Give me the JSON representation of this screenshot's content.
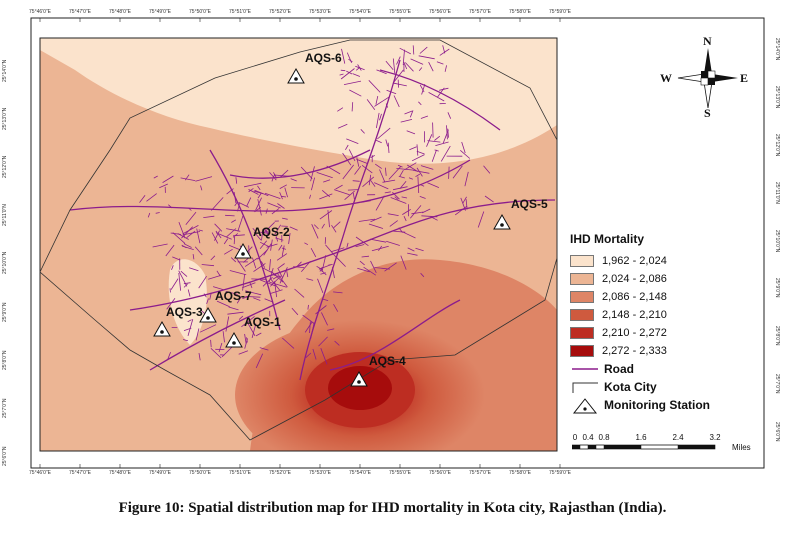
{
  "caption": "Figure 10: Spatial distribution map for IHD mortality in Kota city, Rajasthan (India).",
  "graticule": {
    "longitude_top": [
      "75°46'0\"E",
      "75°47'0\"E",
      "75°48'0\"E",
      "75°49'0\"E",
      "75°50'0\"E",
      "75°51'0\"E",
      "75°52'0\"E",
      "75°53'0\"E",
      "75°54'0\"E",
      "75°55'0\"E",
      "75°56'0\"E",
      "75°57'0\"E",
      "75°58'0\"E",
      "75°59'0\"E"
    ],
    "longitude_bottom": [
      "75°46'0\"E",
      "75°47'0\"E",
      "75°48'0\"E",
      "75°49'0\"E",
      "75°50'0\"E",
      "75°51'0\"E",
      "75°52'0\"E",
      "75°53'0\"E",
      "75°54'0\"E",
      "75°55'0\"E",
      "75°56'0\"E",
      "75°57'0\"E",
      "75°58'0\"E",
      "75°59'0\"E"
    ],
    "latitude_left": [
      "25°14'0\"N",
      "25°13'0\"N",
      "25°12'0\"N",
      "25°11'0\"N",
      "25°10'0\"N",
      "25°9'0\"N",
      "25°8'0\"N",
      "25°7'0\"N",
      "25°6'0\"N"
    ],
    "latitude_right": [
      "25°14'0\"N",
      "25°13'0\"N",
      "25°12'0\"N",
      "25°11'0\"N",
      "25°10'0\"N",
      "25°9'0\"N",
      "25°8'0\"N",
      "25°7'0\"N",
      "25°6'0\"N"
    ]
  },
  "stations": [
    {
      "id": "AQS-6",
      "label": "AQS-6"
    },
    {
      "id": "AQS-5",
      "label": "AQS-5"
    },
    {
      "id": "AQS-2",
      "label": "AQS-2"
    },
    {
      "id": "AQS-7",
      "label": "AQS-7"
    },
    {
      "id": "AQS-3",
      "label": "AQS-3"
    },
    {
      "id": "AQS-1",
      "label": "AQS-1"
    },
    {
      "id": "AQS-4",
      "label": "AQS-4"
    }
  ],
  "legend": {
    "title": "IHD Mortality",
    "classes": [
      {
        "label": "1,962 - 2,024",
        "color": "#fbe3cc"
      },
      {
        "label": "2,024 - 2,086",
        "color": "#ecb594"
      },
      {
        "label": "2,086 - 2,148",
        "color": "#de8566"
      },
      {
        "label": "2,148 - 2,210",
        "color": "#cf5a3e"
      },
      {
        "label": "2,210 - 2,272",
        "color": "#bd2d22"
      },
      {
        "label": "2,272 - 2,333",
        "color": "#a60c0c"
      }
    ],
    "road": "Road",
    "boundary": "Kota City",
    "station": "Monitoring Station"
  },
  "scale": {
    "ticks": [
      "0",
      "0.4",
      "0.8",
      "1.6",
      "2.4",
      "3.2"
    ],
    "unit": "Miles"
  },
  "compass": {
    "n": "N",
    "e": "E",
    "s": "S",
    "w": "W"
  },
  "colors": {
    "road": "#8b1c8c",
    "boundary": "#333333",
    "frame": "#222222"
  }
}
